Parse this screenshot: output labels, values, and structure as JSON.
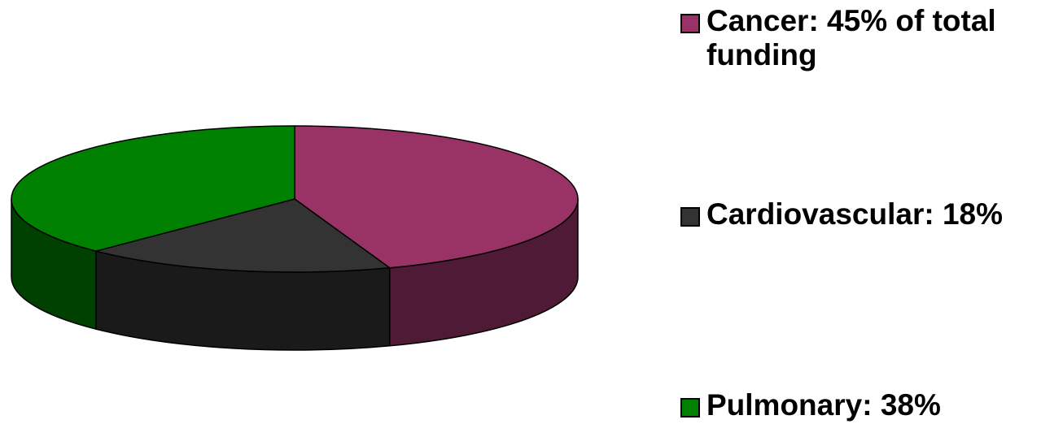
{
  "chart_data": {
    "type": "pie",
    "style": "3d",
    "slices": [
      {
        "label": "Cancer: 45% of total funding",
        "value": 45,
        "color": "#993366",
        "side_color": "#4e1a35"
      },
      {
        "label": "Cardiovascular: 18%",
        "value": 18,
        "color": "#333333",
        "side_color": "#1a1a1a"
      },
      {
        "label": "Pulmonary: 38%",
        "value": 38,
        "color": "#008000",
        "side_color": "#004000"
      }
    ],
    "legend_position": "right"
  }
}
